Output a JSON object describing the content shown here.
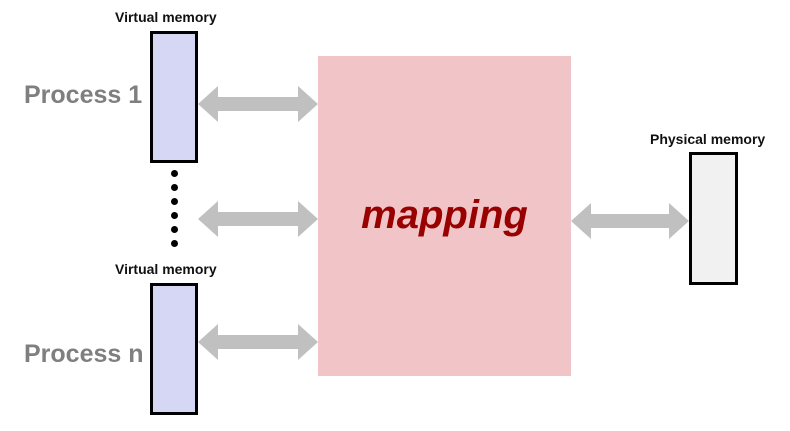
{
  "processes": [
    {
      "label": "Process 1",
      "memory_label": "Virtual memory"
    },
    {
      "label": "Process n",
      "memory_label": "Virtual memory"
    }
  ],
  "mapping": {
    "label": "mapping"
  },
  "physical": {
    "label": "Physical memory"
  },
  "colors": {
    "virtual_memory_fill": "#d6d6f5",
    "physical_memory_fill": "#f1f1f1",
    "mapping_fill": "#f1c5c7",
    "mapping_text": "#990000",
    "process_label": "#7f7f7f",
    "arrow": "#c0c0c0"
  }
}
